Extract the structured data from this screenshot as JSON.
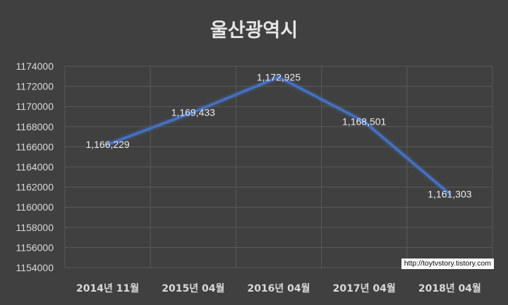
{
  "chart_data": {
    "type": "line",
    "title": "울산광역시",
    "categories": [
      "2014년 11월",
      "2015년 04월",
      "2016년 04월",
      "2017년 04월",
      "2018년 04월"
    ],
    "series": [
      {
        "values": [
          1166229,
          1169433,
          1172925,
          1168501,
          1161303
        ],
        "labels": [
          "1,166,229",
          "1,169,433",
          "1,172,925",
          "1,168,501",
          "1,161,303"
        ],
        "color": "#4472c4"
      }
    ],
    "ylim": [
      1154000,
      1174000
    ],
    "yticks": [
      "1174000",
      "1172000",
      "1170000",
      "1168000",
      "1166000",
      "1164000",
      "1162000",
      "1160000",
      "1158000",
      "1156000",
      "1154000"
    ],
    "grid": true,
    "xlabel": "",
    "ylabel": ""
  },
  "watermark": "http://toytvstory.tistory.com",
  "colors": {
    "background": "#404040",
    "gridline": "#595959",
    "line": "#4472c4"
  }
}
